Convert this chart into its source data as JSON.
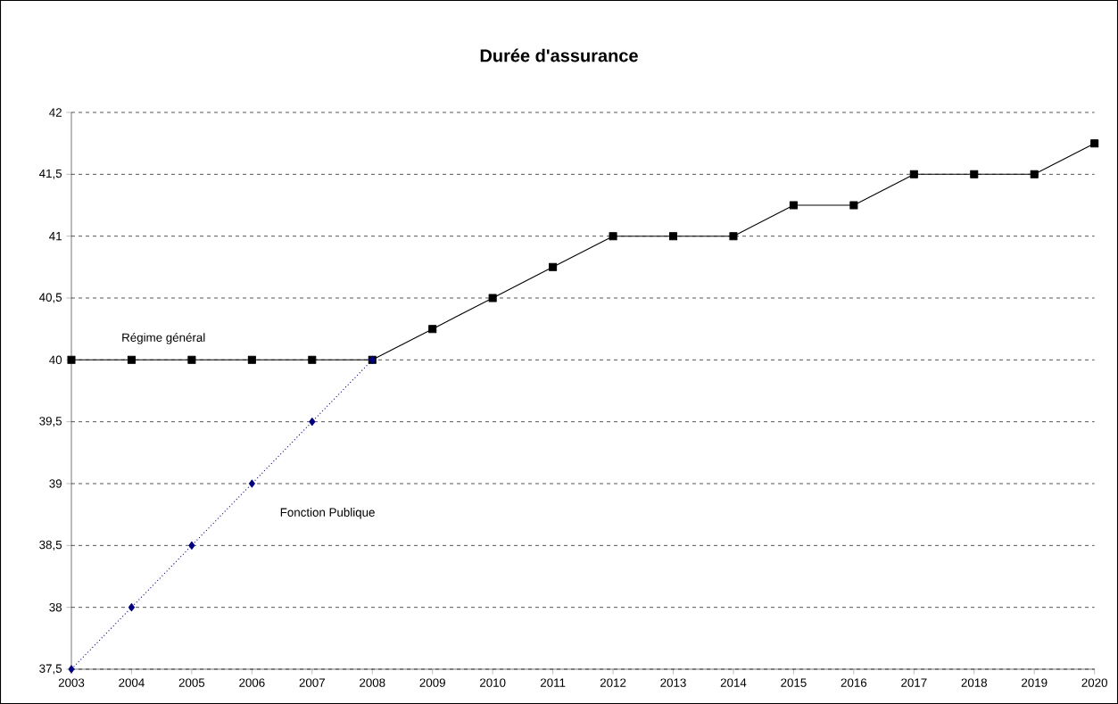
{
  "chart_data": {
    "type": "line",
    "title": "Durée d'assurance",
    "x": [
      2003,
      2004,
      2005,
      2006,
      2007,
      2008,
      2009,
      2010,
      2011,
      2012,
      2013,
      2014,
      2015,
      2016,
      2017,
      2018,
      2019,
      2020
    ],
    "series": [
      {
        "name": "Régime général",
        "color": "#000000",
        "marker": "square",
        "line_style": "solid",
        "values": [
          40,
          40,
          40,
          40,
          40,
          40,
          40.25,
          40.5,
          40.75,
          41,
          41,
          41,
          41.25,
          41.25,
          41.5,
          41.5,
          41.5,
          41.75
        ]
      },
      {
        "name": "Fonction Publique",
        "color": "#000080",
        "marker": "diamond",
        "line_style": "dotted",
        "values": [
          37.5,
          38,
          38.5,
          39,
          39.5,
          40,
          null,
          null,
          null,
          null,
          null,
          null,
          null,
          null,
          null,
          null,
          null,
          null
        ]
      }
    ],
    "xlim": [
      2003,
      2020
    ],
    "xticks": [
      2003,
      2004,
      2005,
      2006,
      2007,
      2008,
      2009,
      2010,
      2011,
      2012,
      2013,
      2014,
      2015,
      2016,
      2017,
      2018,
      2019,
      2020
    ],
    "ylim": [
      37.5,
      42
    ],
    "yticks": [
      {
        "value": 37.5,
        "label": "37,5"
      },
      38,
      {
        "value": 38.5,
        "label": "38,5"
      },
      39,
      {
        "value": 39.5,
        "label": "39,5"
      },
      40,
      {
        "value": 40.5,
        "label": "40,5"
      },
      41,
      {
        "value": 41.5,
        "label": "41,5"
      },
      42
    ],
    "grid": "y",
    "legend": false
  }
}
